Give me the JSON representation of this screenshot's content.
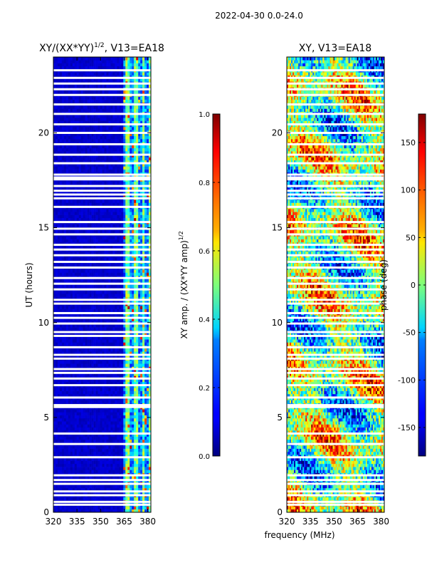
{
  "suptitle": "2022-04-30 0.0-24.0",
  "shared_xlabel": "frequency (MHz)",
  "colors": {
    "background": "#ffffff",
    "axis": "#000000",
    "jet_low": "#00007f",
    "jet_high": "#7f0000"
  },
  "chart_data": [
    {
      "type": "heatmap",
      "title_main": "XY/(XX*YY)",
      "title_sup": "1/2",
      "title_tail": ", V13=EA18",
      "xlabel": "",
      "ylabel": "UT (hours)",
      "xlim": [
        320,
        382
      ],
      "ylim": [
        0,
        24
      ],
      "xticks": [
        320,
        335,
        350,
        365,
        380
      ],
      "yticks": [
        0,
        5,
        10,
        15,
        20
      ],
      "colormap": "jet",
      "colorbar": {
        "label_main": "XY amp. / (XX*YY amp)",
        "label_sup": "1/2",
        "range": [
          0.0,
          1.0
        ],
        "ticks": [
          "0.0",
          "0.2",
          "0.4",
          "0.6",
          "0.8",
          "1.0"
        ],
        "tick_values": [
          0.0,
          0.2,
          0.4,
          0.6,
          0.8,
          1.0
        ]
      },
      "description_values": {
        "background_level": 0.05,
        "noisy_band_start_mhz": 364,
        "noisy_band_levels": [
          0.3,
          0.9
        ]
      }
    },
    {
      "type": "heatmap",
      "title_main": "XY, V13=EA18",
      "xlabel": "frequency (MHz)",
      "ylabel": "",
      "xlim": [
        320,
        382
      ],
      "ylim": [
        0,
        24
      ],
      "xticks": [
        320,
        335,
        350,
        365,
        380
      ],
      "yticks": [
        0,
        5,
        10,
        15,
        20
      ],
      "colormap": "jet",
      "colorbar": {
        "label_main": "phase (deg)",
        "range": [
          -180,
          180
        ],
        "ticks": [
          "-150",
          "-100",
          "-50",
          "0",
          "50",
          "100",
          "150"
        ],
        "tick_values": [
          -150,
          -100,
          -50,
          0,
          50,
          100,
          150
        ]
      }
    }
  ],
  "flagged_gap_hours": [
    0.4,
    0.55,
    0.9,
    1.1,
    1.5,
    1.7,
    1.95,
    2.9,
    3.6,
    4.15,
    5.55,
    5.65,
    6.05,
    6.7,
    7.05,
    7.35,
    7.55,
    8.1,
    8.3,
    8.7,
    9.3,
    9.5,
    9.95,
    10.25,
    10.5,
    11.0,
    11.2,
    11.75,
    12.05,
    12.35,
    12.9,
    13.2,
    13.55,
    13.85,
    14.1,
    14.65,
    14.95,
    15.3,
    16.1,
    16.55,
    16.75,
    16.95,
    17.2,
    17.55,
    17.65,
    17.8,
    18.4,
    18.85,
    19.4,
    20.0,
    20.45,
    21.0,
    21.5,
    22.0,
    22.3,
    22.6,
    22.9,
    23.3
  ]
}
